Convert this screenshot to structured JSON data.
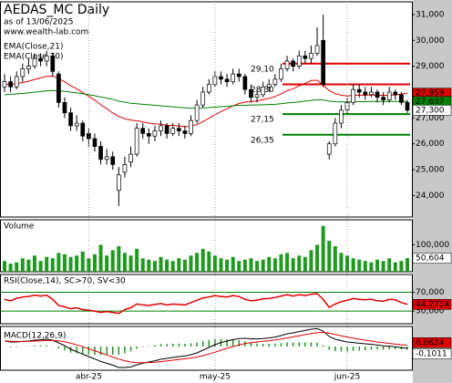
{
  "chart_data": {
    "type": "candlestick",
    "title": "AEDAS_MC Daily",
    "subtitle": "as of 13/06/2025",
    "source": "www.wealth-lab.com",
    "categories": [
      null,
      null,
      null,
      null,
      null,
      null,
      null,
      null,
      null,
      null,
      null,
      null,
      null,
      null,
      "abr-25",
      null,
      null,
      null,
      null,
      null,
      null,
      null,
      null,
      null,
      null,
      null,
      null,
      null,
      null,
      null,
      null,
      null,
      null,
      null,
      null,
      "may-25",
      null,
      null,
      null,
      null,
      null,
      null,
      null,
      null,
      null,
      null,
      null,
      null,
      null,
      null,
      null,
      null,
      null,
      null,
      null,
      null,
      null,
      "jun-25",
      null,
      null,
      null,
      null,
      null,
      null,
      null,
      null,
      null,
      null
    ],
    "ohlc": [
      [
        28200,
        28700,
        28000,
        28400
      ],
      [
        28400,
        28600,
        28000,
        28200
      ],
      [
        28200,
        28800,
        28100,
        28600
      ],
      [
        28600,
        29100,
        28400,
        28900
      ],
      [
        28900,
        29300,
        28700,
        29000
      ],
      [
        29000,
        29500,
        28900,
        29300
      ],
      [
        29300,
        29500,
        29000,
        29200
      ],
      [
        29200,
        29600,
        29000,
        29400
      ],
      [
        29400,
        29500,
        28600,
        28800
      ],
      [
        28700,
        28800,
        27400,
        27600
      ],
      [
        27600,
        27800,
        27000,
        27200
      ],
      [
        27200,
        27400,
        26500,
        26700
      ],
      [
        26700,
        27100,
        26500,
        26800
      ],
      [
        26800,
        26900,
        26100,
        26300
      ],
      [
        26400,
        26600,
        25900,
        26200
      ],
      [
        26200,
        26400,
        25700,
        25900
      ],
      [
        25900,
        26100,
        25200,
        25400
      ],
      [
        25400,
        25800,
        25200,
        25500
      ],
      [
        25500,
        25700,
        25000,
        25200
      ],
      [
        24200,
        25100,
        23600,
        24800
      ],
      [
        24900,
        25500,
        24700,
        25200
      ],
      [
        25300,
        25900,
        25100,
        25600
      ],
      [
        25600,
        26800,
        25500,
        26600
      ],
      [
        26600,
        26800,
        26200,
        26400
      ],
      [
        26400,
        26600,
        26000,
        26300
      ],
      [
        26300,
        26700,
        26100,
        26500
      ],
      [
        26500,
        26900,
        26300,
        26700
      ],
      [
        26700,
        26800,
        26200,
        26400
      ],
      [
        26400,
        26800,
        26300,
        26600
      ],
      [
        26600,
        26800,
        26300,
        26500
      ],
      [
        26500,
        26700,
        26200,
        26400
      ],
      [
        26400,
        27100,
        26300,
        26900
      ],
      [
        26900,
        27700,
        26800,
        27500
      ],
      [
        27500,
        28200,
        27400,
        28000
      ],
      [
        28000,
        28500,
        27900,
        28300
      ],
      [
        28300,
        28800,
        28200,
        28600
      ],
      [
        28600,
        28800,
        28300,
        28500
      ],
      [
        28500,
        28700,
        28200,
        28400
      ],
      [
        28400,
        28900,
        28300,
        28700
      ],
      [
        28700,
        28900,
        28400,
        28600
      ],
      [
        28600,
        28700,
        27900,
        28100
      ],
      [
        28100,
        28300,
        27600,
        27800
      ],
      [
        27800,
        28100,
        27600,
        27900
      ],
      [
        27900,
        28400,
        27800,
        28200
      ],
      [
        28200,
        28500,
        28000,
        28300
      ],
      [
        28300,
        28700,
        28200,
        28500
      ],
      [
        28500,
        29100,
        28400,
        28900
      ],
      [
        28900,
        29400,
        28800,
        29200
      ],
      [
        29200,
        29300,
        28800,
        29000
      ],
      [
        29000,
        29600,
        28900,
        29400
      ],
      [
        29400,
        29600,
        29100,
        29300
      ],
      [
        29300,
        29800,
        29100,
        29500
      ],
      [
        29500,
        30500,
        29400,
        29800
      ],
      [
        30000,
        31000,
        28200,
        28300
      ],
      [
        25600,
        26100,
        25400,
        26000
      ],
      [
        26000,
        27000,
        25900,
        26800
      ],
      [
        26800,
        27500,
        26600,
        27300
      ],
      [
        27300,
        27800,
        27100,
        27600
      ],
      [
        27600,
        28300,
        27500,
        28100
      ],
      [
        28100,
        28300,
        27800,
        28000
      ],
      [
        28000,
        28200,
        27700,
        27900
      ],
      [
        27900,
        28200,
        27800,
        28000
      ],
      [
        28000,
        28100,
        27600,
        27800
      ],
      [
        27800,
        28000,
        27500,
        27700
      ],
      [
        27700,
        28200,
        27600,
        28000
      ],
      [
        28000,
        28100,
        27700,
        27900
      ],
      [
        27900,
        28000,
        27500,
        27600
      ],
      [
        27600,
        27700,
        27200,
        27300
      ]
    ],
    "close_label": "27,300",
    "ylim": [
      23170,
      31490
    ],
    "yticks": [
      {
        "value": 24000,
        "label": "24,000"
      },
      {
        "value": 25000,
        "label": "25,000"
      },
      {
        "value": 26000,
        "label": "26,000"
      },
      {
        "value": 27000,
        "label": "27,000"
      },
      {
        "value": 28000,
        "label": "28,000"
      },
      {
        "value": 29000,
        "label": "29,000"
      },
      {
        "value": 30000,
        "label": "30,000"
      },
      {
        "value": 31000,
        "label": "31,000"
      }
    ],
    "series": [
      {
        "name": "EMA(Close,21)",
        "color": "#e00000",
        "last_label": "27,959",
        "values": [
          28300,
          28290,
          28320,
          28370,
          28420,
          28490,
          28550,
          28610,
          28620,
          28520,
          28400,
          28250,
          28130,
          27980,
          27840,
          27690,
          27510,
          27360,
          27190,
          27060,
          26970,
          26920,
          26890,
          26850,
          26800,
          26770,
          26760,
          26720,
          26710,
          26690,
          26660,
          26680,
          26750,
          26860,
          26990,
          27130,
          27250,
          27350,
          27470,
          27560,
          27610,
          27630,
          27660,
          27710,
          27760,
          27830,
          27930,
          28050,
          28130,
          28240,
          28340,
          28450,
          28460,
          28260,
          28060,
          27940,
          27880,
          27850,
          27870,
          27880,
          27880,
          27890,
          27880,
          27870,
          27880,
          27890,
          27920,
          27959
        ]
      },
      {
        "name": "EMA(Close,70)",
        "color": "#008000",
        "last_label": "27,637",
        "values": [
          27900,
          27910,
          27930,
          27950,
          27970,
          28000,
          28020,
          28050,
          28060,
          28050,
          28030,
          28000,
          27970,
          27940,
          27900,
          27860,
          27810,
          27770,
          27720,
          27650,
          27610,
          27570,
          27550,
          27530,
          27510,
          27490,
          27470,
          27450,
          27430,
          27410,
          27390,
          27380,
          27380,
          27390,
          27400,
          27420,
          27440,
          27450,
          27470,
          27490,
          27490,
          27500,
          27500,
          27510,
          27520,
          27530,
          27550,
          27580,
          27600,
          27620,
          27650,
          27680,
          27700,
          27700,
          27650,
          27630,
          27620,
          27620,
          27630,
          27630,
          27630,
          27640,
          27640,
          27640,
          27640,
          27640,
          27640,
          27637
        ]
      }
    ],
    "levels": [
      {
        "value": 29100,
        "label": "29,10",
        "color": "#e00000"
      },
      {
        "value": 28300,
        "label": "28,30",
        "color": "#e00000"
      },
      {
        "value": 27150,
        "label": "27,15",
        "color": "#008000"
      },
      {
        "value": 26350,
        "label": "26,35",
        "color": "#008000"
      }
    ],
    "volume": {
      "title": "Volume",
      "color": "#1f9a1f",
      "ylim": [
        0,
        193000
      ],
      "yticks": [
        {
          "value": 100000,
          "label": "100,000"
        }
      ],
      "last_label": "50,604",
      "values": [
        40000,
        30000,
        35000,
        50000,
        45000,
        60000,
        40000,
        55000,
        50000,
        70000,
        65000,
        55000,
        60000,
        75000,
        50000,
        65000,
        100000,
        60000,
        80000,
        95000,
        70000,
        60000,
        85000,
        50000,
        45000,
        40000,
        55000,
        45000,
        40000,
        50000,
        45000,
        60000,
        70000,
        85000,
        75000,
        60000,
        50000,
        45000,
        55000,
        40000,
        45000,
        50000,
        40000,
        45000,
        55000,
        50000,
        65000,
        70000,
        50000,
        60000,
        55000,
        80000,
        100000,
        170000,
        115000,
        95000,
        70000,
        60000,
        50000,
        45000,
        40000,
        35000,
        45000,
        40000,
        50000,
        35000,
        40000,
        50604
      ]
    },
    "rsi": {
      "title": "RSI(Close,14), SC>70, SV<30",
      "color": "#e00000",
      "band_color": "#008000",
      "ylim": [
        3,
        108
      ],
      "yticks": [
        {
          "value": 70,
          "label": "70,000"
        },
        {
          "value": 30,
          "label": "30,000"
        }
      ],
      "last_label": "44,2714",
      "values": [
        55,
        52,
        57,
        60,
        61,
        64,
        62,
        64,
        55,
        42,
        39,
        35,
        37,
        33,
        32,
        30,
        27,
        29,
        27,
        25,
        33,
        37,
        45,
        43,
        42,
        44,
        46,
        43,
        45,
        44,
        43,
        48,
        53,
        58,
        60,
        63,
        61,
        60,
        63,
        61,
        55,
        52,
        53,
        56,
        57,
        59,
        62,
        65,
        62,
        65,
        63,
        66,
        67,
        55,
        38,
        45,
        50,
        53,
        57,
        55,
        54,
        55,
        52,
        51,
        55,
        54,
        48,
        44.2714
      ]
    },
    "macd": {
      "title": "MACD(12,26,9)",
      "ylim": [
        -1.3,
        1.1
      ],
      "line": {
        "color": "#000000",
        "last_label": "-0,1011",
        "values": [
          0.3,
          0.25,
          0.25,
          0.28,
          0.3,
          0.35,
          0.37,
          0.4,
          0.35,
          0.2,
          0.05,
          -0.15,
          -0.28,
          -0.42,
          -0.55,
          -0.68,
          -0.82,
          -0.92,
          -1.02,
          -1.15,
          -1.15,
          -1.12,
          -1.0,
          -0.92,
          -0.85,
          -0.78,
          -0.7,
          -0.65,
          -0.6,
          -0.55,
          -0.52,
          -0.45,
          -0.35,
          -0.2,
          -0.05,
          0.1,
          0.22,
          0.3,
          0.38,
          0.44,
          0.45,
          0.42,
          0.42,
          0.44,
          0.47,
          0.52,
          0.6,
          0.7,
          0.75,
          0.82,
          0.88,
          0.95,
          0.98,
          0.85,
          0.55,
          0.4,
          0.32,
          0.25,
          0.22,
          0.18,
          0.15,
          0.12,
          0.08,
          0.04,
          0.02,
          -0.02,
          -0.06,
          -0.1011
        ]
      },
      "signal": {
        "color": "#e00000",
        "last_label": "0,0624",
        "values": [
          0.3,
          0.29,
          0.28,
          0.28,
          0.28,
          0.3,
          0.31,
          0.33,
          0.34,
          0.31,
          0.26,
          0.18,
          0.09,
          -0.01,
          -0.12,
          -0.23,
          -0.35,
          -0.46,
          -0.58,
          -0.69,
          -0.78,
          -0.85,
          -0.88,
          -0.89,
          -0.88,
          -0.86,
          -0.83,
          -0.79,
          -0.75,
          -0.71,
          -0.67,
          -0.63,
          -0.57,
          -0.5,
          -0.41,
          -0.31,
          -0.2,
          -0.1,
          0.0,
          0.09,
          0.16,
          0.21,
          0.25,
          0.29,
          0.32,
          0.36,
          0.41,
          0.47,
          0.53,
          0.59,
          0.65,
          0.71,
          0.76,
          0.78,
          0.73,
          0.66,
          0.59,
          0.52,
          0.46,
          0.4,
          0.35,
          0.3,
          0.25,
          0.21,
          0.17,
          0.13,
          0.1,
          0.0624
        ]
      },
      "histogram": {
        "color": "#1f9a1f",
        "values": [
          0,
          -0.04,
          -0.03,
          0,
          0.02,
          0.05,
          0.06,
          0.07,
          0.01,
          -0.11,
          -0.21,
          -0.33,
          -0.37,
          -0.41,
          -0.43,
          -0.45,
          -0.47,
          -0.46,
          -0.44,
          -0.46,
          -0.37,
          -0.27,
          -0.12,
          -0.03,
          0.03,
          0.08,
          0.13,
          0.14,
          0.15,
          0.16,
          0.15,
          0.18,
          0.22,
          0.3,
          0.36,
          0.41,
          0.42,
          0.4,
          0.38,
          0.35,
          0.29,
          0.21,
          0.17,
          0.15,
          0.15,
          0.16,
          0.19,
          0.23,
          0.22,
          0.23,
          0.23,
          0.24,
          0.22,
          0.07,
          -0.18,
          -0.26,
          -0.27,
          -0.27,
          -0.24,
          -0.22,
          -0.2,
          -0.18,
          -0.17,
          -0.17,
          -0.15,
          -0.15,
          -0.16,
          -0.1635
        ]
      }
    }
  }
}
